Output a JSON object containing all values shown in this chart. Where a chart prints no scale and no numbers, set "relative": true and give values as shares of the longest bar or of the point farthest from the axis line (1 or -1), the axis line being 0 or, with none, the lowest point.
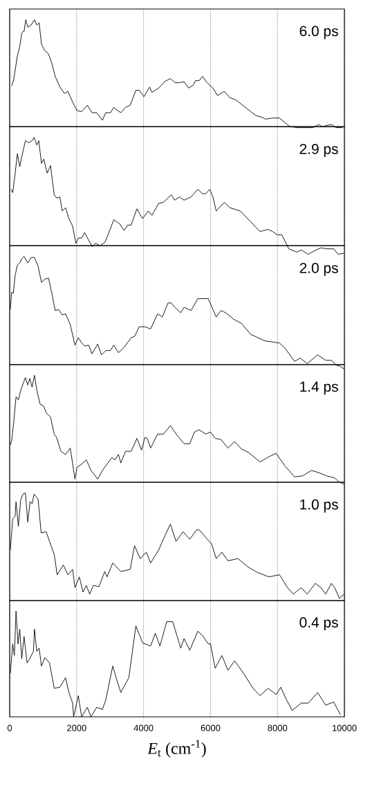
{
  "chart_data": [
    {
      "type": "line",
      "relative": true,
      "color": "#000000",
      "grid": "x",
      "tick_labels": false,
      "xlim": [
        0,
        10000
      ],
      "xticks": [
        0,
        2000,
        4000,
        6000,
        8000,
        10000
      ],
      "annotations": [
        "6.0 ps"
      ],
      "x": [
        60,
        120,
        230,
        300,
        360,
        400,
        430,
        480,
        540,
        640,
        740,
        810,
        880,
        950,
        1050,
        1160,
        1260,
        1360,
        1500,
        1640,
        1740,
        1880,
        2010,
        2150,
        2320,
        2460,
        2600,
        2770,
        2870,
        3010,
        3110,
        3180,
        3320,
        3460,
        3600,
        3770,
        3870,
        4010,
        4180,
        4250,
        4450,
        4630,
        4800,
        4940,
        5070,
        5210,
        5350,
        5490,
        5550,
        5660,
        5760,
        5900,
        6070,
        6210,
        6410,
        6580,
        6760,
        7000,
        7200,
        7380,
        7510,
        7650,
        7860,
        8060,
        8370,
        8580,
        8850,
        9060,
        9230,
        9330,
        9610,
        9750,
        9950
      ],
      "values": [
        0.38,
        0.44,
        0.66,
        0.75,
        0.87,
        0.89,
        0.89,
        1.0,
        0.93,
        0.95,
        1.0,
        0.95,
        0.97,
        0.77,
        0.71,
        0.68,
        0.59,
        0.47,
        0.37,
        0.31,
        0.33,
        0.23,
        0.15,
        0.14,
        0.2,
        0.13,
        0.13,
        0.06,
        0.13,
        0.13,
        0.18,
        0.16,
        0.13,
        0.18,
        0.2,
        0.34,
        0.34,
        0.28,
        0.37,
        0.32,
        0.36,
        0.42,
        0.45,
        0.41,
        0.41,
        0.42,
        0.36,
        0.39,
        0.43,
        0.43,
        0.47,
        0.41,
        0.36,
        0.29,
        0.33,
        0.27,
        0.25,
        0.19,
        0.14,
        0.1,
        0.09,
        0.07,
        0.08,
        0.08,
        0.0,
        -0.01,
        -0.01,
        -0.01,
        0.02,
        0.0,
        0.02,
        -0.01,
        -0.01
      ]
    },
    {
      "type": "line",
      "relative": true,
      "color": "#000000",
      "grid": "x",
      "tick_labels": false,
      "xlim": [
        0,
        10000
      ],
      "xticks": [
        0,
        2000,
        4000,
        6000,
        8000,
        10000
      ],
      "annotations": [
        "2.9 ps"
      ],
      "x": [
        40,
        90,
        160,
        230,
        300,
        360,
        470,
        570,
        670,
        730,
        810,
        870,
        950,
        1020,
        1120,
        1220,
        1330,
        1400,
        1500,
        1570,
        1670,
        1770,
        1880,
        1980,
        2050,
        2150,
        2240,
        2360,
        2460,
        2560,
        2700,
        2840,
        2940,
        3110,
        3290,
        3420,
        3530,
        3630,
        3800,
        3970,
        4140,
        4250,
        4450,
        4590,
        4830,
        4930,
        5070,
        5210,
        5420,
        5620,
        5760,
        5860,
        5980,
        6070,
        6170,
        6410,
        6580,
        6890,
        7200,
        7480,
        7720,
        7860,
        7990,
        8130,
        8340,
        8580,
        8710,
        8920,
        9090,
        9300,
        9470,
        9680,
        9810,
        9990
      ],
      "values": [
        0.52,
        0.49,
        0.66,
        0.85,
        0.73,
        0.82,
        0.97,
        0.95,
        0.97,
        1.0,
        0.93,
        0.97,
        0.76,
        0.8,
        0.67,
        0.74,
        0.47,
        0.44,
        0.45,
        0.32,
        0.35,
        0.25,
        0.18,
        0.02,
        0.07,
        0.07,
        0.12,
        0.05,
        -0.01,
        0.02,
        0.0,
        0.03,
        0.1,
        0.24,
        0.2,
        0.14,
        0.19,
        0.19,
        0.34,
        0.25,
        0.32,
        0.28,
        0.39,
        0.4,
        0.47,
        0.42,
        0.45,
        0.42,
        0.45,
        0.52,
        0.48,
        0.48,
        0.52,
        0.45,
        0.32,
        0.4,
        0.35,
        0.32,
        0.22,
        0.13,
        0.15,
        0.13,
        0.1,
        0.1,
        -0.03,
        -0.06,
        -0.04,
        -0.08,
        -0.05,
        -0.02,
        -0.03,
        -0.03,
        -0.08,
        -0.07
      ]
    },
    {
      "type": "line",
      "relative": true,
      "color": "#000000",
      "grid": "x",
      "tick_labels": false,
      "xlim": [
        0,
        10000
      ],
      "xticks": [
        0,
        2000,
        4000,
        6000,
        8000,
        10000
      ],
      "annotations": [
        "2.0 ps"
      ],
      "x": [
        20,
        60,
        110,
        160,
        230,
        300,
        360,
        430,
        540,
        640,
        740,
        850,
        950,
        1050,
        1160,
        1260,
        1360,
        1460,
        1570,
        1670,
        1810,
        1950,
        2050,
        2150,
        2250,
        2360,
        2460,
        2630,
        2740,
        2870,
        3010,
        3110,
        3250,
        3420,
        3630,
        3730,
        3870,
        4040,
        4210,
        4420,
        4560,
        4730,
        4830,
        4930,
        5110,
        5210,
        5420,
        5620,
        5760,
        5930,
        6030,
        6170,
        6310,
        6450,
        6690,
        6930,
        7200,
        7620,
        8060,
        8230,
        8510,
        8680,
        8890,
        9200,
        9440,
        9610,
        9780,
        9850,
        9990
      ],
      "values": [
        0.51,
        0.67,
        0.66,
        0.82,
        0.92,
        0.94,
        0.98,
        1.0,
        0.94,
        0.99,
        0.99,
        0.91,
        0.76,
        0.79,
        0.8,
        0.66,
        0.5,
        0.51,
        0.46,
        0.47,
        0.37,
        0.18,
        0.25,
        0.2,
        0.17,
        0.18,
        0.1,
        0.19,
        0.09,
        0.13,
        0.13,
        0.18,
        0.11,
        0.16,
        0.25,
        0.26,
        0.35,
        0.35,
        0.33,
        0.47,
        0.44,
        0.57,
        0.57,
        0.53,
        0.48,
        0.53,
        0.5,
        0.61,
        0.61,
        0.61,
        0.54,
        0.44,
        0.5,
        0.48,
        0.42,
        0.38,
        0.28,
        0.22,
        0.2,
        0.15,
        0.03,
        0.06,
        0.01,
        0.09,
        0.04,
        0.04,
        -0.01,
        -0.01,
        -0.04
      ]
    },
    {
      "type": "line",
      "relative": true,
      "color": "#000000",
      "grid": "x",
      "tick_labels": false,
      "xlim": [
        0,
        10000
      ],
      "xticks": [
        0,
        2000,
        4000,
        6000,
        8000,
        10000
      ],
      "annotations": [
        "1.4 ps"
      ],
      "x": [
        20,
        60,
        120,
        190,
        260,
        330,
        400,
        470,
        540,
        600,
        670,
        740,
        810,
        910,
        1020,
        1090,
        1220,
        1330,
        1400,
        1530,
        1670,
        1810,
        1950,
        2010,
        2150,
        2290,
        2430,
        2630,
        2770,
        2910,
        3050,
        3150,
        3250,
        3320,
        3460,
        3630,
        3800,
        3940,
        4040,
        4110,
        4210,
        4420,
        4590,
        4800,
        5000,
        5210,
        5380,
        5520,
        5660,
        5860,
        6000,
        6140,
        6310,
        6520,
        6720,
        6930,
        7130,
        7480,
        7750,
        7960,
        8230,
        8510,
        8750,
        9020,
        9230,
        9470,
        9710,
        9850,
        9880,
        9990
      ],
      "values": [
        0.35,
        0.39,
        0.56,
        0.8,
        0.77,
        0.86,
        0.92,
        0.98,
        0.91,
        0.97,
        0.89,
        1.0,
        0.86,
        0.73,
        0.71,
        0.65,
        0.61,
        0.45,
        0.42,
        0.29,
        0.26,
        0.32,
        0.03,
        0.14,
        0.17,
        0.21,
        0.11,
        0.03,
        0.11,
        0.17,
        0.23,
        0.21,
        0.26,
        0.18,
        0.29,
        0.29,
        0.41,
        0.3,
        0.42,
        0.41,
        0.32,
        0.45,
        0.45,
        0.53,
        0.44,
        0.36,
        0.36,
        0.47,
        0.49,
        0.45,
        0.47,
        0.41,
        0.4,
        0.32,
        0.38,
        0.31,
        0.28,
        0.19,
        0.24,
        0.27,
        0.15,
        0.05,
        0.06,
        0.11,
        0.09,
        0.06,
        0.04,
        0.0,
        0.0,
        -0.02
      ]
    },
    {
      "type": "line",
      "relative": true,
      "color": "#000000",
      "grid": "x",
      "tick_labels": false,
      "xlim": [
        0,
        10000
      ],
      "xticks": [
        0,
        2000,
        4000,
        6000,
        8000,
        10000
      ],
      "annotations": [
        "1.0 ps"
      ],
      "x": [
        20,
        90,
        160,
        190,
        260,
        330,
        400,
        470,
        540,
        610,
        670,
        730,
        810,
        850,
        940,
        1090,
        1190,
        1330,
        1420,
        1600,
        1740,
        1880,
        1950,
        2080,
        2190,
        2290,
        2390,
        2500,
        2670,
        2840,
        2910,
        3080,
        3320,
        3600,
        3730,
        3900,
        4080,
        4210,
        4450,
        4590,
        4800,
        4970,
        5180,
        5380,
        5590,
        5690,
        5900,
        6030,
        6170,
        6340,
        6520,
        6820,
        7130,
        7410,
        7750,
        8060,
        8300,
        8470,
        8710,
        8890,
        9130,
        9300,
        9440,
        9610,
        9710,
        9850,
        9990
      ],
      "values": [
        0.47,
        0.76,
        0.78,
        0.92,
        0.69,
        0.94,
        0.99,
        1.0,
        0.73,
        0.92,
        0.9,
        0.99,
        0.96,
        0.94,
        0.63,
        0.64,
        0.55,
        0.43,
        0.24,
        0.33,
        0.24,
        0.29,
        0.12,
        0.22,
        0.08,
        0.14,
        0.06,
        0.14,
        0.13,
        0.27,
        0.22,
        0.35,
        0.27,
        0.29,
        0.51,
        0.39,
        0.45,
        0.35,
        0.47,
        0.57,
        0.71,
        0.55,
        0.64,
        0.57,
        0.66,
        0.65,
        0.57,
        0.53,
        0.39,
        0.45,
        0.37,
        0.39,
        0.31,
        0.26,
        0.22,
        0.24,
        0.12,
        0.06,
        0.12,
        0.06,
        0.16,
        0.12,
        0.06,
        0.16,
        0.12,
        0.02,
        0.06
      ]
    },
    {
      "type": "line",
      "relative": true,
      "color": "#000000",
      "grid": "x",
      "tick_labels": "x",
      "xlim": [
        0,
        10000
      ],
      "xticks": [
        0,
        2000,
        4000,
        6000,
        8000,
        10000
      ],
      "xlabel": "*E*$_{t}$ (cm$^{-1}$)",
      "annotations": [
        "0.4 ps"
      ],
      "x": [
        20,
        90,
        140,
        190,
        250,
        300,
        360,
        430,
        520,
        600,
        710,
        740,
        810,
        880,
        950,
        1050,
        1190,
        1330,
        1500,
        1670,
        1770,
        1880,
        1910,
        2050,
        2150,
        2320,
        2430,
        2600,
        2770,
        2870,
        3080,
        3180,
        3320,
        3560,
        3770,
        3970,
        4210,
        4350,
        4490,
        4690,
        4870,
        5110,
        5210,
        5380,
        5620,
        5760,
        5930,
        6000,
        6140,
        6340,
        6520,
        6720,
        6990,
        7270,
        7480,
        7720,
        7960,
        8100,
        8270,
        8440,
        8710,
        8920,
        9200,
        9440,
        9680,
        9880
      ],
      "values": [
        0.41,
        0.69,
        0.58,
        1.0,
        0.69,
        0.83,
        0.55,
        0.76,
        0.51,
        0.55,
        0.62,
        0.83,
        0.62,
        0.65,
        0.48,
        0.56,
        0.51,
        0.27,
        0.28,
        0.37,
        0.23,
        0.13,
        0.0,
        0.2,
        0.0,
        0.09,
        0.0,
        0.09,
        0.07,
        0.16,
        0.48,
        0.37,
        0.23,
        0.37,
        0.86,
        0.7,
        0.67,
        0.79,
        0.67,
        0.9,
        0.9,
        0.65,
        0.74,
        0.63,
        0.81,
        0.77,
        0.69,
        0.69,
        0.46,
        0.58,
        0.44,
        0.53,
        0.41,
        0.27,
        0.2,
        0.27,
        0.21,
        0.28,
        0.16,
        0.06,
        0.13,
        0.13,
        0.23,
        0.11,
        0.14,
        0.02
      ]
    }
  ]
}
